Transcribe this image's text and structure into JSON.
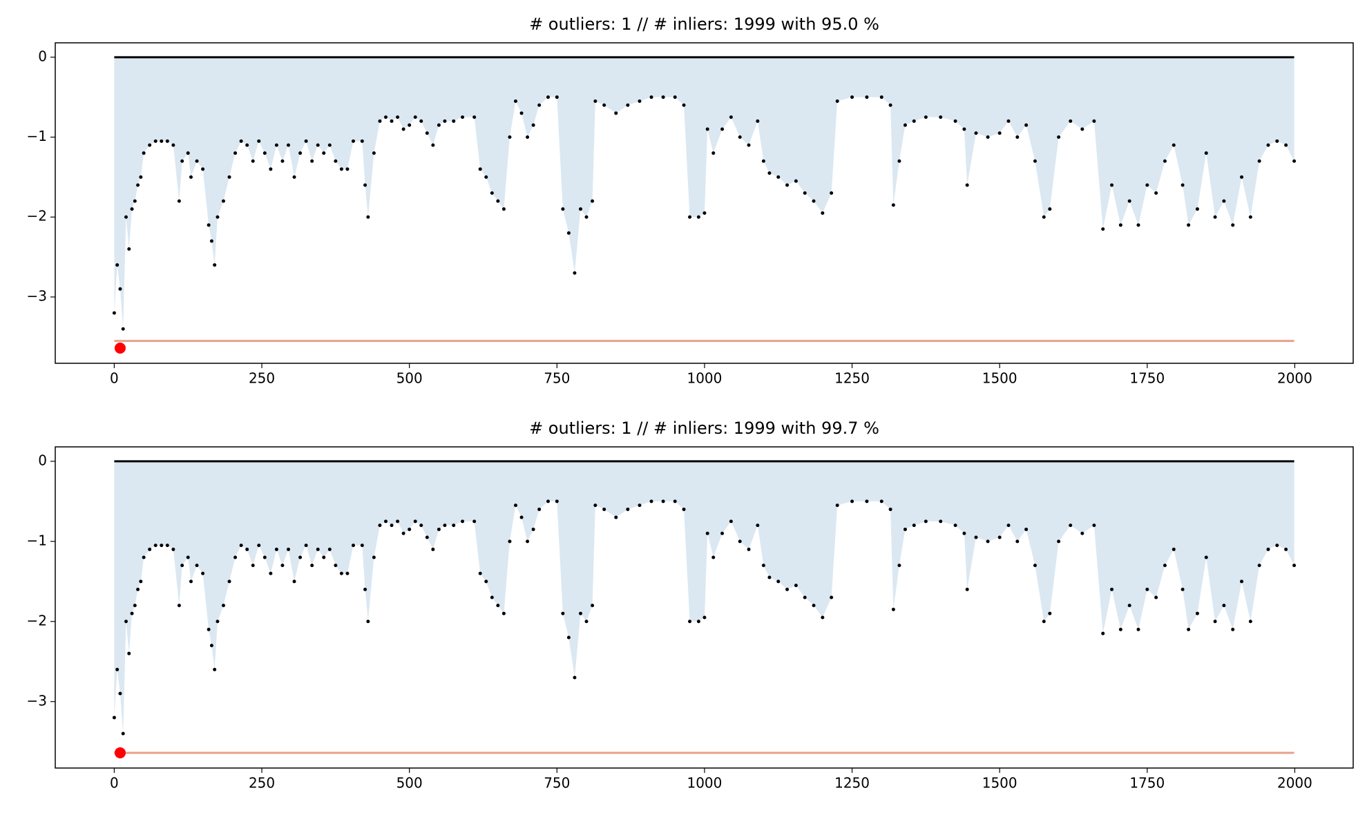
{
  "chart_data": [
    {
      "type": "scatter",
      "title": "# outliers: 1 // # inliers: 1999 with 95.0 %",
      "x": [
        0,
        5,
        10,
        15,
        20,
        25,
        30,
        35,
        40,
        45,
        50,
        60,
        70,
        80,
        90,
        100,
        110,
        115,
        125,
        130,
        140,
        150,
        160,
        165,
        170,
        175,
        185,
        195,
        205,
        215,
        225,
        235,
        245,
        255,
        265,
        275,
        285,
        295,
        305,
        315,
        325,
        335,
        345,
        355,
        365,
        375,
        385,
        395,
        405,
        420,
        425,
        430,
        440,
        450,
        460,
        470,
        480,
        490,
        500,
        510,
        520,
        530,
        540,
        550,
        560,
        575,
        590,
        610,
        620,
        630,
        640,
        650,
        660,
        670,
        680,
        690,
        700,
        710,
        720,
        735,
        750,
        760,
        770,
        780,
        790,
        800,
        810,
        815,
        830,
        850,
        870,
        890,
        910,
        930,
        950,
        965,
        975,
        990,
        1000,
        1005,
        1015,
        1030,
        1045,
        1060,
        1075,
        1090,
        1100,
        1110,
        1125,
        1140,
        1155,
        1170,
        1185,
        1200,
        1215,
        1225,
        1250,
        1275,
        1300,
        1315,
        1320,
        1330,
        1340,
        1355,
        1375,
        1400,
        1425,
        1440,
        1445,
        1460,
        1480,
        1500,
        1515,
        1530,
        1545,
        1560,
        1575,
        1585,
        1600,
        1620,
        1640,
        1660,
        1675,
        1690,
        1705,
        1720,
        1735,
        1750,
        1765,
        1780,
        1795,
        1810,
        1820,
        1835,
        1850,
        1865,
        1880,
        1895,
        1910,
        1925,
        1940,
        1955,
        1970,
        1985,
        1999
      ],
      "values": [
        -3.2,
        -2.6,
        -2.9,
        -3.4,
        -2.0,
        -2.4,
        -1.9,
        -1.8,
        -1.6,
        -1.5,
        -1.2,
        -1.1,
        -1.05,
        -1.05,
        -1.05,
        -1.1,
        -1.8,
        -1.3,
        -1.2,
        -1.5,
        -1.3,
        -1.4,
        -2.1,
        -2.3,
        -2.6,
        -2.0,
        -1.8,
        -1.5,
        -1.2,
        -1.05,
        -1.1,
        -1.3,
        -1.05,
        -1.2,
        -1.4,
        -1.1,
        -1.3,
        -1.1,
        -1.5,
        -1.2,
        -1.05,
        -1.3,
        -1.1,
        -1.2,
        -1.1,
        -1.3,
        -1.4,
        -1.4,
        -1.05,
        -1.05,
        -1.6,
        -2.0,
        -1.2,
        -0.8,
        -0.75,
        -0.8,
        -0.75,
        -0.9,
        -0.85,
        -0.75,
        -0.8,
        -0.95,
        -1.1,
        -0.85,
        -0.8,
        -0.8,
        -0.75,
        -0.75,
        -1.4,
        -1.5,
        -1.7,
        -1.8,
        -1.9,
        -1.0,
        -0.55,
        -0.7,
        -1.0,
        -0.85,
        -0.6,
        -0.5,
        -0.5,
        -1.9,
        -2.2,
        -2.7,
        -1.9,
        -2.0,
        -1.8,
        -0.55,
        -0.6,
        -0.7,
        -0.6,
        -0.55,
        -0.5,
        -0.5,
        -0.5,
        -0.6,
        -2.0,
        -2.0,
        -1.95,
        -0.9,
        -1.2,
        -0.9,
        -0.75,
        -1.0,
        -1.1,
        -0.8,
        -1.3,
        -1.45,
        -1.5,
        -1.6,
        -1.55,
        -1.7,
        -1.8,
        -1.95,
        -1.7,
        -0.55,
        -0.5,
        -0.5,
        -0.5,
        -0.6,
        -1.85,
        -1.3,
        -0.85,
        -0.8,
        -0.75,
        -0.75,
        -0.8,
        -0.9,
        -1.6,
        -0.95,
        -1.0,
        -0.95,
        -0.8,
        -1.0,
        -0.85,
        -1.3,
        -2.0,
        -1.9,
        -1.0,
        -0.8,
        -0.9,
        -0.8,
        -2.15,
        -1.6,
        -2.1,
        -1.8,
        -2.1,
        -1.6,
        -1.7,
        -1.3,
        -1.1,
        -1.6,
        -2.1,
        -1.9,
        -1.2,
        -2.0,
        -1.8,
        -2.1,
        -1.5,
        -2.0,
        -1.3,
        -1.1,
        -1.05,
        -1.1,
        -1.3
      ],
      "color": "#000000",
      "area_color": "#cfe0ee",
      "baseline": 0,
      "baseline_color": "#000000",
      "threshold": -3.55,
      "threshold_color": "#e8a08a",
      "outlier": {
        "x": 10,
        "y": -3.64,
        "color": "#ff0000"
      },
      "xlim": [
        -99.95,
        2098.95
      ],
      "ylim": [
        -3.83,
        0.18
      ],
      "xticks": [
        0,
        250,
        500,
        750,
        1000,
        1250,
        1500,
        1750,
        2000
      ],
      "yticks": [
        0,
        {
          "value": -1,
          "label": "−1"
        },
        {
          "value": -2,
          "label": "−2"
        },
        {
          "value": -3,
          "label": "−3"
        }
      ]
    },
    {
      "type": "scatter",
      "title": "# outliers: 1 // # inliers: 1999 with 99.7 %",
      "x": [
        0,
        5,
        10,
        15,
        20,
        25,
        30,
        35,
        40,
        45,
        50,
        60,
        70,
        80,
        90,
        100,
        110,
        115,
        125,
        130,
        140,
        150,
        160,
        165,
        170,
        175,
        185,
        195,
        205,
        215,
        225,
        235,
        245,
        255,
        265,
        275,
        285,
        295,
        305,
        315,
        325,
        335,
        345,
        355,
        365,
        375,
        385,
        395,
        405,
        420,
        425,
        430,
        440,
        450,
        460,
        470,
        480,
        490,
        500,
        510,
        520,
        530,
        540,
        550,
        560,
        575,
        590,
        610,
        620,
        630,
        640,
        650,
        660,
        670,
        680,
        690,
        700,
        710,
        720,
        735,
        750,
        760,
        770,
        780,
        790,
        800,
        810,
        815,
        830,
        850,
        870,
        890,
        910,
        930,
        950,
        965,
        975,
        990,
        1000,
        1005,
        1015,
        1030,
        1045,
        1060,
        1075,
        1090,
        1100,
        1110,
        1125,
        1140,
        1155,
        1170,
        1185,
        1200,
        1215,
        1225,
        1250,
        1275,
        1300,
        1315,
        1320,
        1330,
        1340,
        1355,
        1375,
        1400,
        1425,
        1440,
        1445,
        1460,
        1480,
        1500,
        1515,
        1530,
        1545,
        1560,
        1575,
        1585,
        1600,
        1620,
        1640,
        1660,
        1675,
        1690,
        1705,
        1720,
        1735,
        1750,
        1765,
        1780,
        1795,
        1810,
        1820,
        1835,
        1850,
        1865,
        1880,
        1895,
        1910,
        1925,
        1940,
        1955,
        1970,
        1985,
        1999
      ],
      "values": [
        -3.2,
        -2.6,
        -2.9,
        -3.4,
        -2.0,
        -2.4,
        -1.9,
        -1.8,
        -1.6,
        -1.5,
        -1.2,
        -1.1,
        -1.05,
        -1.05,
        -1.05,
        -1.1,
        -1.8,
        -1.3,
        -1.2,
        -1.5,
        -1.3,
        -1.4,
        -2.1,
        -2.3,
        -2.6,
        -2.0,
        -1.8,
        -1.5,
        -1.2,
        -1.05,
        -1.1,
        -1.3,
        -1.05,
        -1.2,
        -1.4,
        -1.1,
        -1.3,
        -1.1,
        -1.5,
        -1.2,
        -1.05,
        -1.3,
        -1.1,
        -1.2,
        -1.1,
        -1.3,
        -1.4,
        -1.4,
        -1.05,
        -1.05,
        -1.6,
        -2.0,
        -1.2,
        -0.8,
        -0.75,
        -0.8,
        -0.75,
        -0.9,
        -0.85,
        -0.75,
        -0.8,
        -0.95,
        -1.1,
        -0.85,
        -0.8,
        -0.8,
        -0.75,
        -0.75,
        -1.4,
        -1.5,
        -1.7,
        -1.8,
        -1.9,
        -1.0,
        -0.55,
        -0.7,
        -1.0,
        -0.85,
        -0.6,
        -0.5,
        -0.5,
        -1.9,
        -2.2,
        -2.7,
        -1.9,
        -2.0,
        -1.8,
        -0.55,
        -0.6,
        -0.7,
        -0.6,
        -0.55,
        -0.5,
        -0.5,
        -0.5,
        -0.6,
        -2.0,
        -2.0,
        -1.95,
        -0.9,
        -1.2,
        -0.9,
        -0.75,
        -1.0,
        -1.1,
        -0.8,
        -1.3,
        -1.45,
        -1.5,
        -1.6,
        -1.55,
        -1.7,
        -1.8,
        -1.95,
        -1.7,
        -0.55,
        -0.5,
        -0.5,
        -0.5,
        -0.6,
        -1.85,
        -1.3,
        -0.85,
        -0.8,
        -0.75,
        -0.75,
        -0.8,
        -0.9,
        -1.6,
        -0.95,
        -1.0,
        -0.95,
        -0.8,
        -1.0,
        -0.85,
        -1.3,
        -2.0,
        -1.9,
        -1.0,
        -0.8,
        -0.9,
        -0.8,
        -2.15,
        -1.6,
        -2.1,
        -1.8,
        -2.1,
        -1.6,
        -1.7,
        -1.3,
        -1.1,
        -1.6,
        -2.1,
        -1.9,
        -1.2,
        -2.0,
        -1.8,
        -2.1,
        -1.5,
        -2.0,
        -1.3,
        -1.1,
        -1.05,
        -1.1,
        -1.3
      ],
      "color": "#000000",
      "area_color": "#cfe0ee",
      "baseline": 0,
      "baseline_color": "#000000",
      "threshold": -3.64,
      "threshold_color": "#e8a08a",
      "outlier": {
        "x": 10,
        "y": -3.64,
        "color": "#ff0000"
      },
      "xlim": [
        -99.95,
        2098.95
      ],
      "ylim": [
        -3.83,
        0.18
      ],
      "xticks": [
        0,
        250,
        500,
        750,
        1000,
        1250,
        1500,
        1750,
        2000
      ],
      "yticks": [
        0,
        {
          "value": -1,
          "label": "−1"
        },
        {
          "value": -2,
          "label": "−2"
        },
        {
          "value": -3,
          "label": "−3"
        }
      ]
    }
  ]
}
